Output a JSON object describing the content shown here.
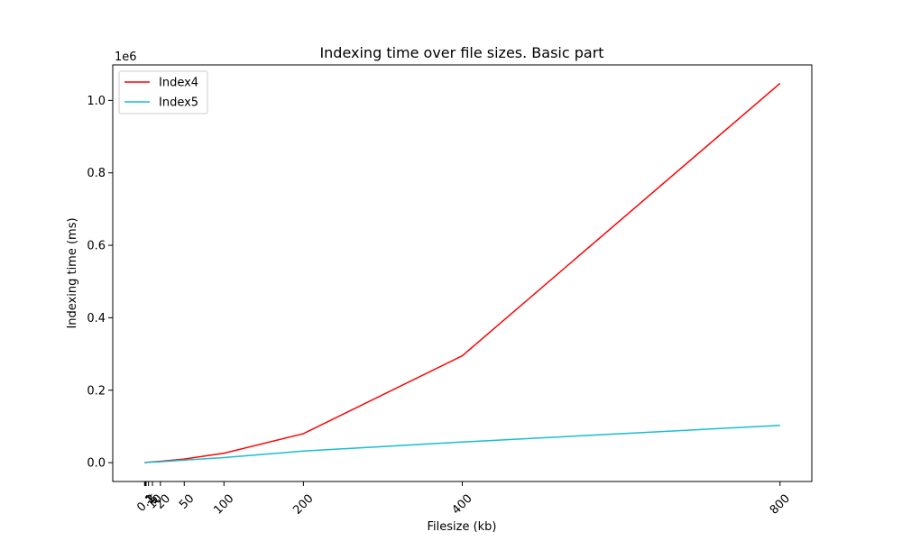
{
  "chart_data": {
    "type": "line",
    "title": "Indexing time over file sizes. Basic part",
    "xlabel": "Filesize (kb)",
    "ylabel": "Indexing time (ms)",
    "y_offset_label": "1e6",
    "x_ticks": [
      0.1,
      1,
      2,
      5,
      10,
      20,
      50,
      100,
      200,
      400,
      800
    ],
    "x_tick_labels": [
      "0.1",
      "1",
      "2",
      "5",
      "10",
      "20",
      "50",
      "100",
      "200",
      "400",
      "800"
    ],
    "y_ticks": [
      0,
      0.2,
      0.4,
      0.6,
      0.8,
      1.0
    ],
    "y_tick_labels": [
      "0.0",
      "0.2",
      "0.4",
      "0.6",
      "0.8",
      "1.0"
    ],
    "y_unit_multiplier": 1000000,
    "xlim": [
      -40,
      840
    ],
    "ylim": [
      -52000,
      1098000
    ],
    "grid": false,
    "legend_position": "upper-left",
    "series": [
      {
        "name": "Index4",
        "color": "#ff0000",
        "x": [
          0.1,
          1,
          2,
          5,
          10,
          20,
          50,
          100,
          200,
          400,
          800
        ],
        "y": [
          50,
          300,
          600,
          1200,
          2200,
          3800,
          10000,
          26000,
          80000,
          295000,
          1047000
        ]
      },
      {
        "name": "Index5",
        "color": "#17becf",
        "x": [
          0.1,
          1,
          2,
          5,
          10,
          20,
          50,
          100,
          200,
          400,
          800
        ],
        "y": [
          50,
          200,
          400,
          800,
          1400,
          2600,
          7000,
          14000,
          32000,
          57000,
          103000
        ]
      }
    ]
  }
}
